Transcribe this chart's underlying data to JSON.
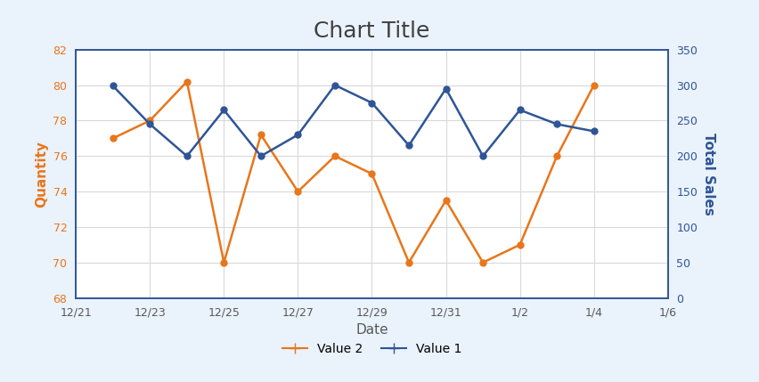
{
  "title": "Chart Title",
  "xlabel": "Date",
  "ylabel_left": "Quantity",
  "ylabel_right": "Total Sales",
  "left_color": "#E8761A",
  "right_color": "#2F5597",
  "background_outer": "#EAF2FB",
  "background_inner": "#FFFFFF",
  "border_color": "#2F5597",
  "x_data": [
    0,
    1,
    2,
    3,
    4,
    5,
    6,
    7,
    8,
    9,
    10,
    11,
    12,
    13
  ],
  "value2_orange": [
    77.0,
    78.0,
    80.2,
    70.0,
    77.2,
    74.0,
    76.0,
    75.0,
    70.0,
    73.5,
    70.0,
    71.0,
    76.0,
    80.0
  ],
  "value1_blue": [
    299.0,
    245.0,
    200.0,
    265.0,
    200.0,
    230.0,
    300.0,
    275.0,
    215.0,
    295.0,
    200.0,
    265.0,
    245.0,
    235.0
  ],
  "xtick_positions": [
    -1,
    1,
    3,
    5,
    7,
    9,
    11,
    13,
    15
  ],
  "xtick_labels": [
    "12/21",
    "12/23",
    "12/25",
    "12/27",
    "12/29",
    "12/31",
    "1/2",
    "1/4",
    "1/6"
  ],
  "xlim": [
    -1,
    15
  ],
  "ylim_left": [
    68,
    82
  ],
  "ylim_right": [
    0,
    350
  ],
  "yticks_left": [
    68,
    70,
    72,
    74,
    76,
    78,
    80,
    82
  ],
  "yticks_right": [
    0,
    50,
    100,
    150,
    200,
    250,
    300,
    350
  ],
  "legend_labels": [
    "Value 2",
    "Value 1"
  ],
  "title_fontsize": 18,
  "axis_label_fontsize": 11,
  "tick_fontsize": 9,
  "legend_fontsize": 10,
  "line_width": 1.8,
  "marker": "o",
  "marker_size": 5,
  "grid_color": "#D9D9D9",
  "tick_color": "#595959"
}
